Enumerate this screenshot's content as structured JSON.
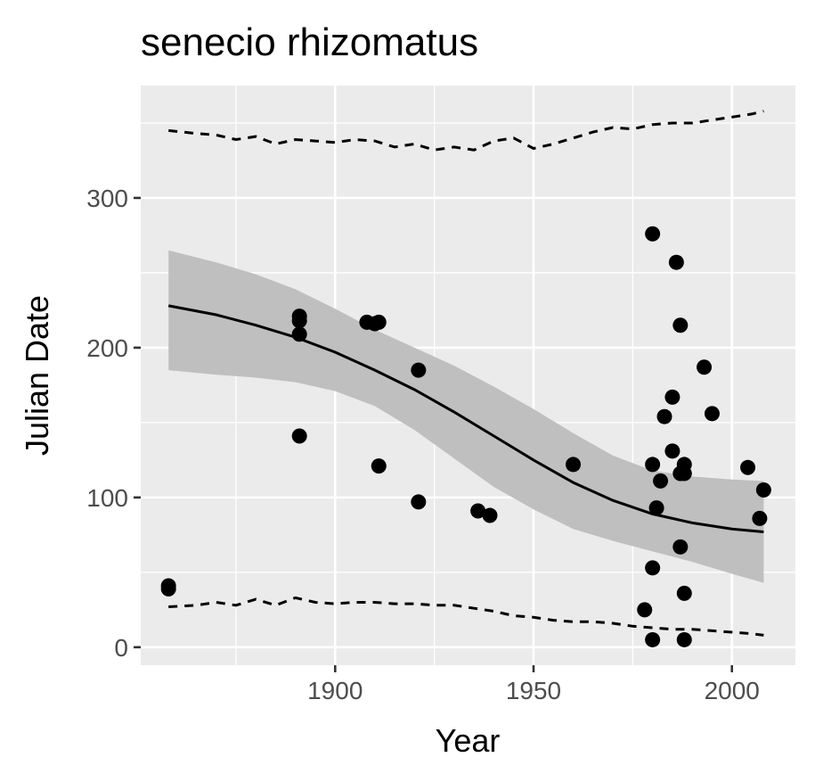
{
  "chart_data": {
    "type": "scatter",
    "title": "senecio rhizomatus",
    "xlabel": "Year",
    "ylabel": "Julian Date",
    "xlim": [
      1851,
      2016
    ],
    "ylim": [
      -12,
      375
    ],
    "x_ticks": [
      1900,
      1950,
      2000
    ],
    "x_tick_labels": [
      "1900",
      "1950",
      "2000"
    ],
    "x_minor_ticks": [
      1875,
      1925,
      1975
    ],
    "y_ticks": [
      0,
      100,
      200,
      300
    ],
    "y_tick_labels": [
      "0",
      "100",
      "200",
      "300"
    ],
    "y_minor_ticks": [
      50,
      150,
      250,
      350
    ],
    "grid": true,
    "legend": "none",
    "colors": {
      "panel_background": "#ebebeb",
      "gridline": "#ffffff",
      "points": "#000000",
      "ribbon": "#bfbfbf",
      "trend_line": "#000000",
      "tick_label": "#4d4d4d"
    },
    "points": [
      {
        "x": 1858,
        "y": 39
      },
      {
        "x": 1858,
        "y": 41
      },
      {
        "x": 1891,
        "y": 209
      },
      {
        "x": 1891,
        "y": 218
      },
      {
        "x": 1891,
        "y": 221
      },
      {
        "x": 1891,
        "y": 141
      },
      {
        "x": 1908,
        "y": 217
      },
      {
        "x": 1910,
        "y": 216
      },
      {
        "x": 1911,
        "y": 217
      },
      {
        "x": 1911,
        "y": 121
      },
      {
        "x": 1921,
        "y": 185
      },
      {
        "x": 1921,
        "y": 97
      },
      {
        "x": 1936,
        "y": 91
      },
      {
        "x": 1939,
        "y": 88
      },
      {
        "x": 1960,
        "y": 122
      },
      {
        "x": 1978,
        "y": 25
      },
      {
        "x": 1980,
        "y": 276
      },
      {
        "x": 1980,
        "y": 122
      },
      {
        "x": 1980,
        "y": 53
      },
      {
        "x": 1980,
        "y": 5
      },
      {
        "x": 1981,
        "y": 93
      },
      {
        "x": 1982,
        "y": 111
      },
      {
        "x": 1983,
        "y": 154
      },
      {
        "x": 1985,
        "y": 167
      },
      {
        "x": 1985,
        "y": 131
      },
      {
        "x": 1986,
        "y": 257
      },
      {
        "x": 1987,
        "y": 215
      },
      {
        "x": 1987,
        "y": 116
      },
      {
        "x": 1987,
        "y": 67
      },
      {
        "x": 1988,
        "y": 122
      },
      {
        "x": 1988,
        "y": 116
      },
      {
        "x": 1988,
        "y": 36
      },
      {
        "x": 1988,
        "y": 5
      },
      {
        "x": 1993,
        "y": 187
      },
      {
        "x": 1995,
        "y": 156
      },
      {
        "x": 2004,
        "y": 120
      },
      {
        "x": 2007,
        "y": 86
      },
      {
        "x": 2008,
        "y": 105
      }
    ],
    "trend": {
      "x": [
        1858,
        1870,
        1880,
        1890,
        1900,
        1910,
        1920,
        1930,
        1940,
        1950,
        1960,
        1970,
        1980,
        1990,
        2000,
        2008
      ],
      "y": [
        228,
        222,
        215,
        207,
        197,
        185,
        172,
        157,
        141,
        125,
        110,
        98,
        89,
        83,
        79,
        77
      ],
      "lower": [
        185,
        182,
        180,
        177,
        171,
        161,
        145,
        126,
        107,
        92,
        79,
        71,
        64,
        57,
        49,
        43
      ],
      "upper": [
        265,
        257,
        249,
        239,
        226,
        212,
        200,
        188,
        174,
        159,
        143,
        128,
        118,
        114,
        112,
        111
      ]
    },
    "upper_dashed": {
      "x": [
        1858,
        1865,
        1870,
        1875,
        1880,
        1885,
        1890,
        1895,
        1900,
        1905,
        1910,
        1915,
        1920,
        1925,
        1930,
        1935,
        1940,
        1945,
        1950,
        1955,
        1960,
        1965,
        1970,
        1975,
        1980,
        1985,
        1990,
        1995,
        2000,
        2005,
        2008
      ],
      "y": [
        345,
        343,
        342,
        339,
        341,
        336,
        339,
        338,
        337,
        339,
        338,
        334,
        336,
        332,
        334,
        332,
        338,
        340,
        333,
        336,
        340,
        344,
        347,
        346,
        349,
        350,
        350,
        352,
        354,
        356,
        358
      ]
    },
    "lower_dashed": {
      "x": [
        1858,
        1865,
        1870,
        1875,
        1880,
        1885,
        1890,
        1895,
        1900,
        1905,
        1910,
        1915,
        1920,
        1925,
        1930,
        1935,
        1940,
        1945,
        1950,
        1955,
        1960,
        1965,
        1970,
        1975,
        1980,
        1985,
        1990,
        1995,
        2000,
        2005,
        2008
      ],
      "y": [
        27,
        28,
        30,
        28,
        32,
        28,
        33,
        30,
        29,
        30,
        30,
        29,
        29,
        28,
        28,
        26,
        24,
        21,
        20,
        18,
        17,
        17,
        16,
        14,
        13,
        12,
        12,
        11,
        10,
        9,
        8
      ]
    }
  }
}
